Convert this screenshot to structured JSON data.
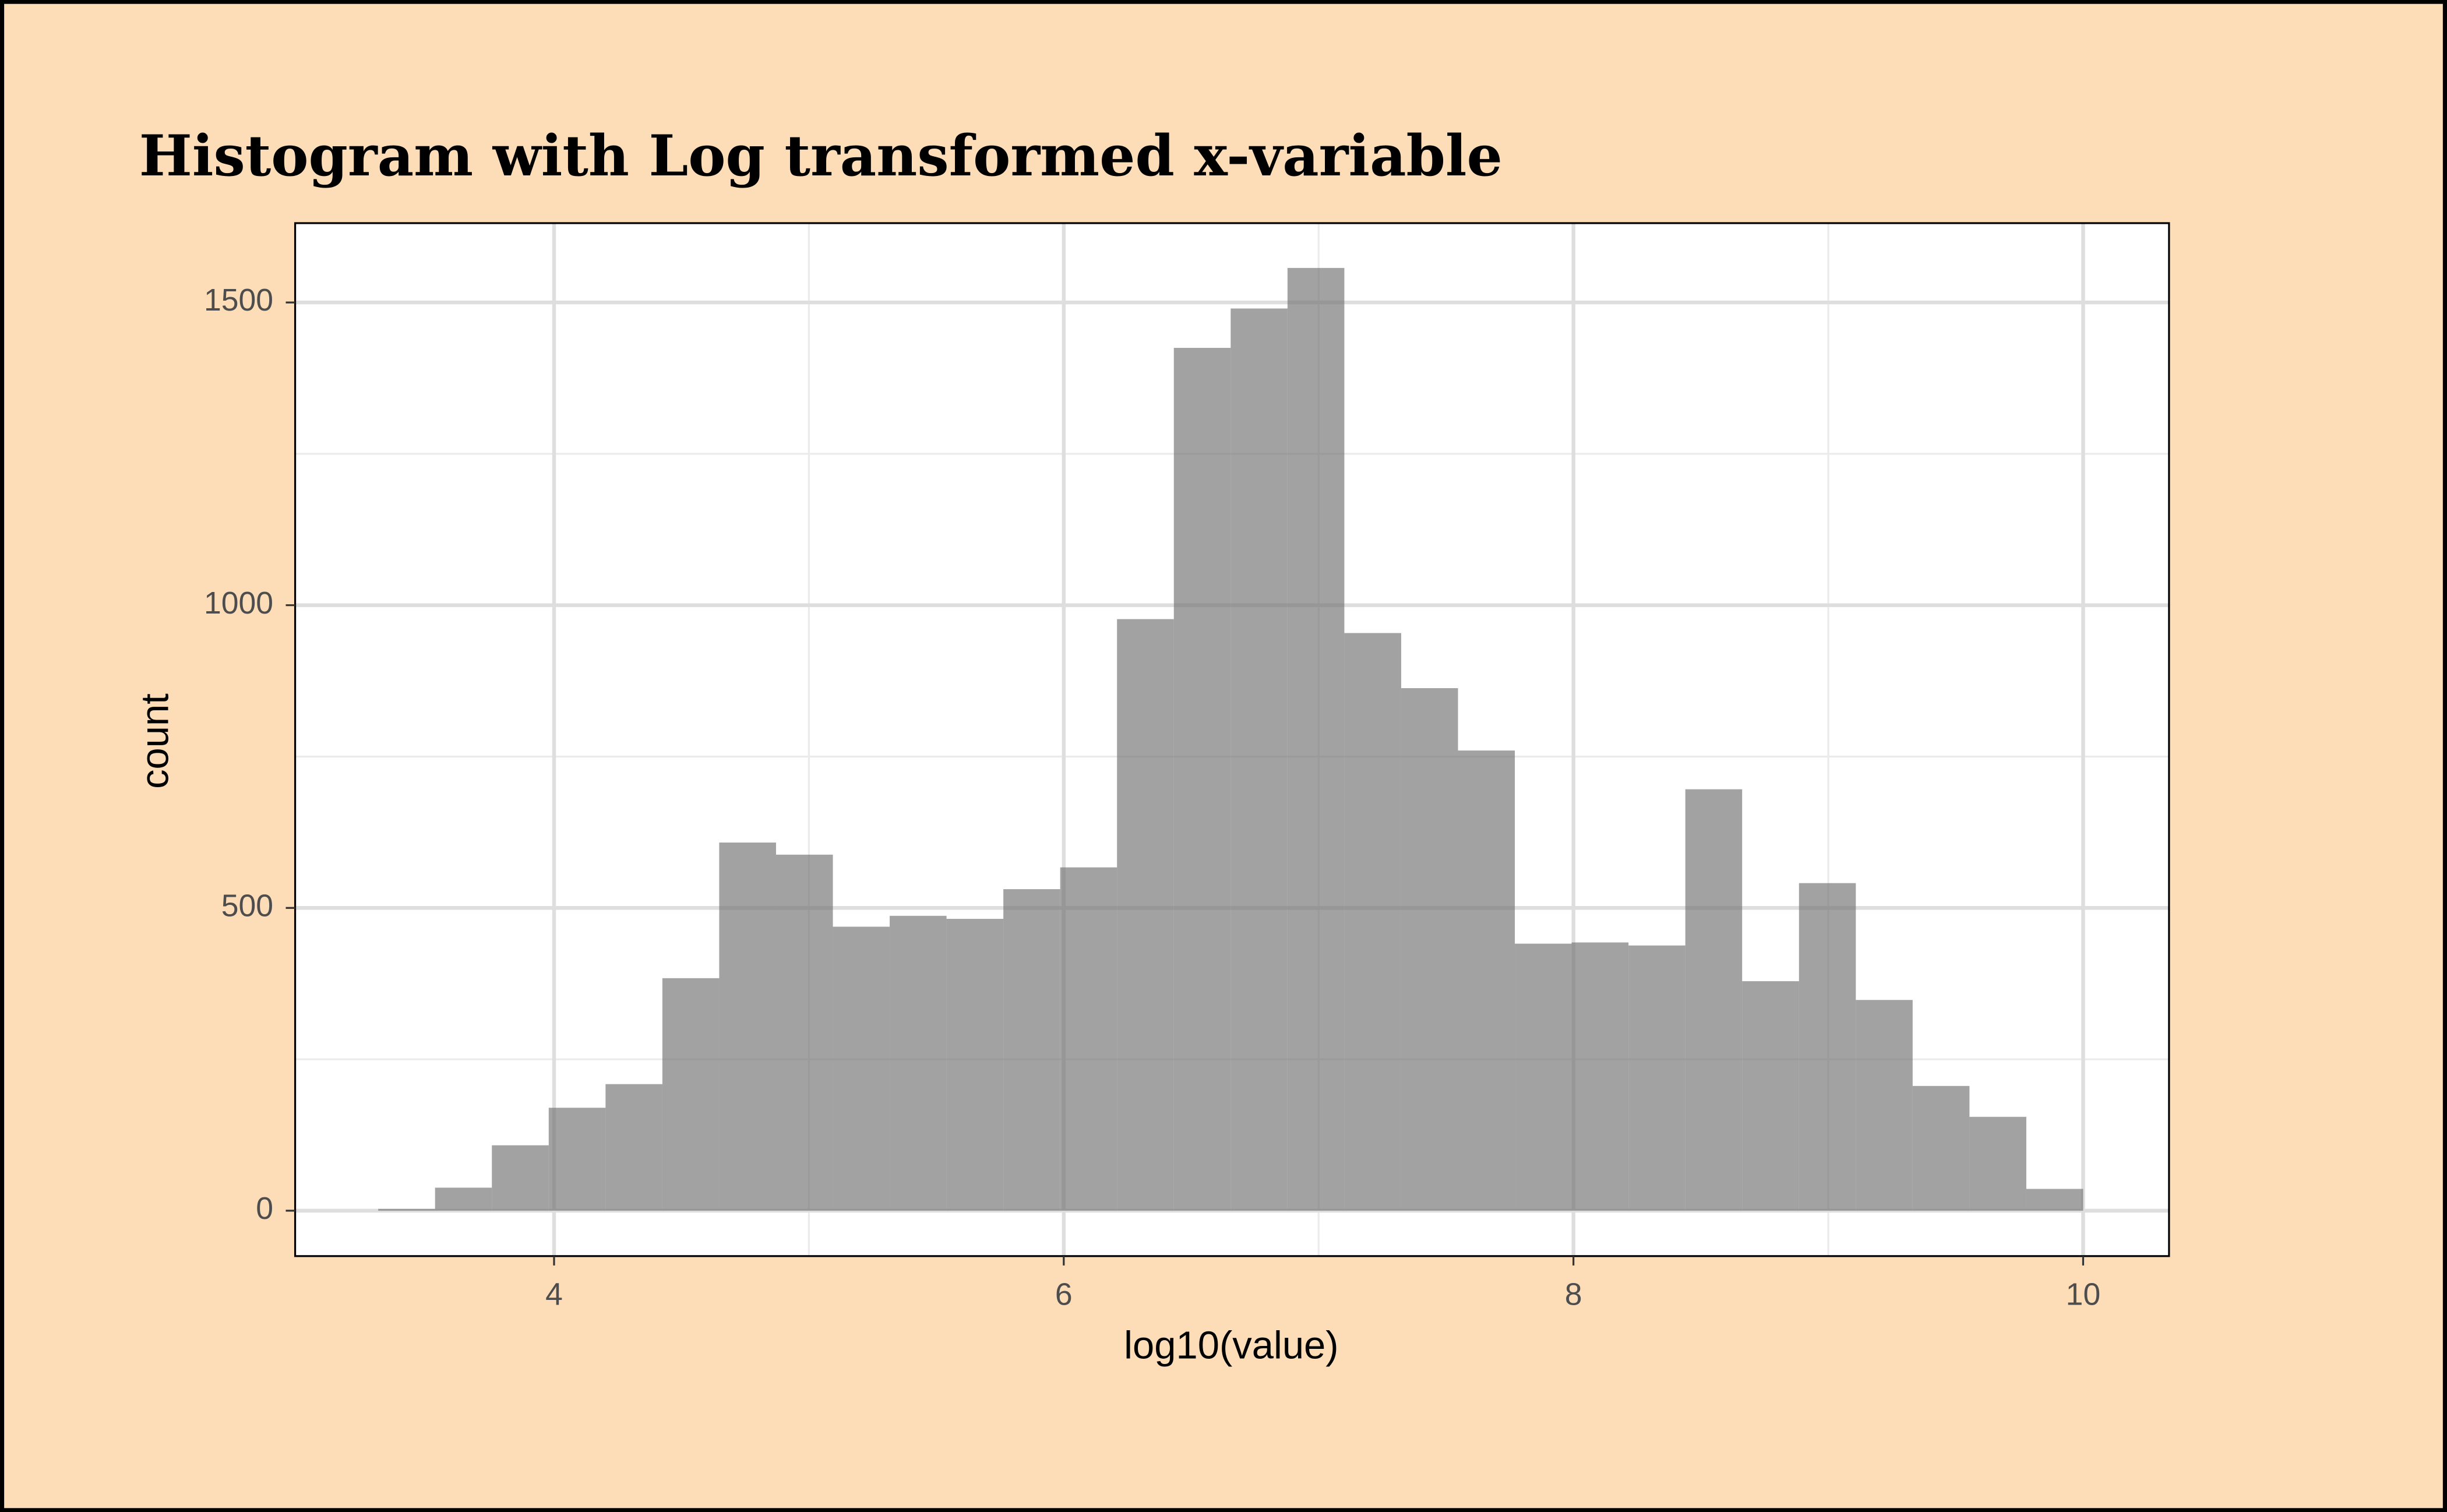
{
  "chart_data": {
    "type": "histogram",
    "title": "Histogram with Log transformed x-variable",
    "x_label": "log10(value)",
    "y_label": "count",
    "bins": [
      3.31,
      3.533,
      3.756,
      3.979,
      4.202,
      4.425,
      4.648,
      4.871,
      5.094,
      5.317,
      5.54,
      5.763,
      5.986,
      6.209,
      6.432,
      6.655,
      6.878,
      7.101,
      7.324,
      7.547,
      7.77,
      7.993,
      8.216,
      8.439,
      8.662,
      8.885,
      9.108,
      9.331,
      9.554,
      9.777,
      10.0
    ],
    "values": [
      3,
      38,
      108,
      170,
      209,
      384,
      608,
      588,
      469,
      487,
      482,
      531,
      567,
      977,
      1425,
      1490,
      1557,
      954,
      863,
      760,
      441,
      443,
      438,
      696,
      379,
      541,
      348,
      206,
      155,
      36
    ],
    "color": "#707070",
    "opacity": 0.65,
    "background": "#fddcb8",
    "xlim": [
      2.984,
      10.337
    ],
    "ylim": [
      -75,
      1631
    ],
    "xticks": [
      4,
      6,
      8,
      10
    ],
    "yticks": [
      0,
      500,
      1000,
      1500
    ],
    "minor_grid": {
      "x": [
        5,
        7,
        9
      ],
      "y": [
        250,
        750,
        1250
      ]
    },
    "grid": true
  }
}
